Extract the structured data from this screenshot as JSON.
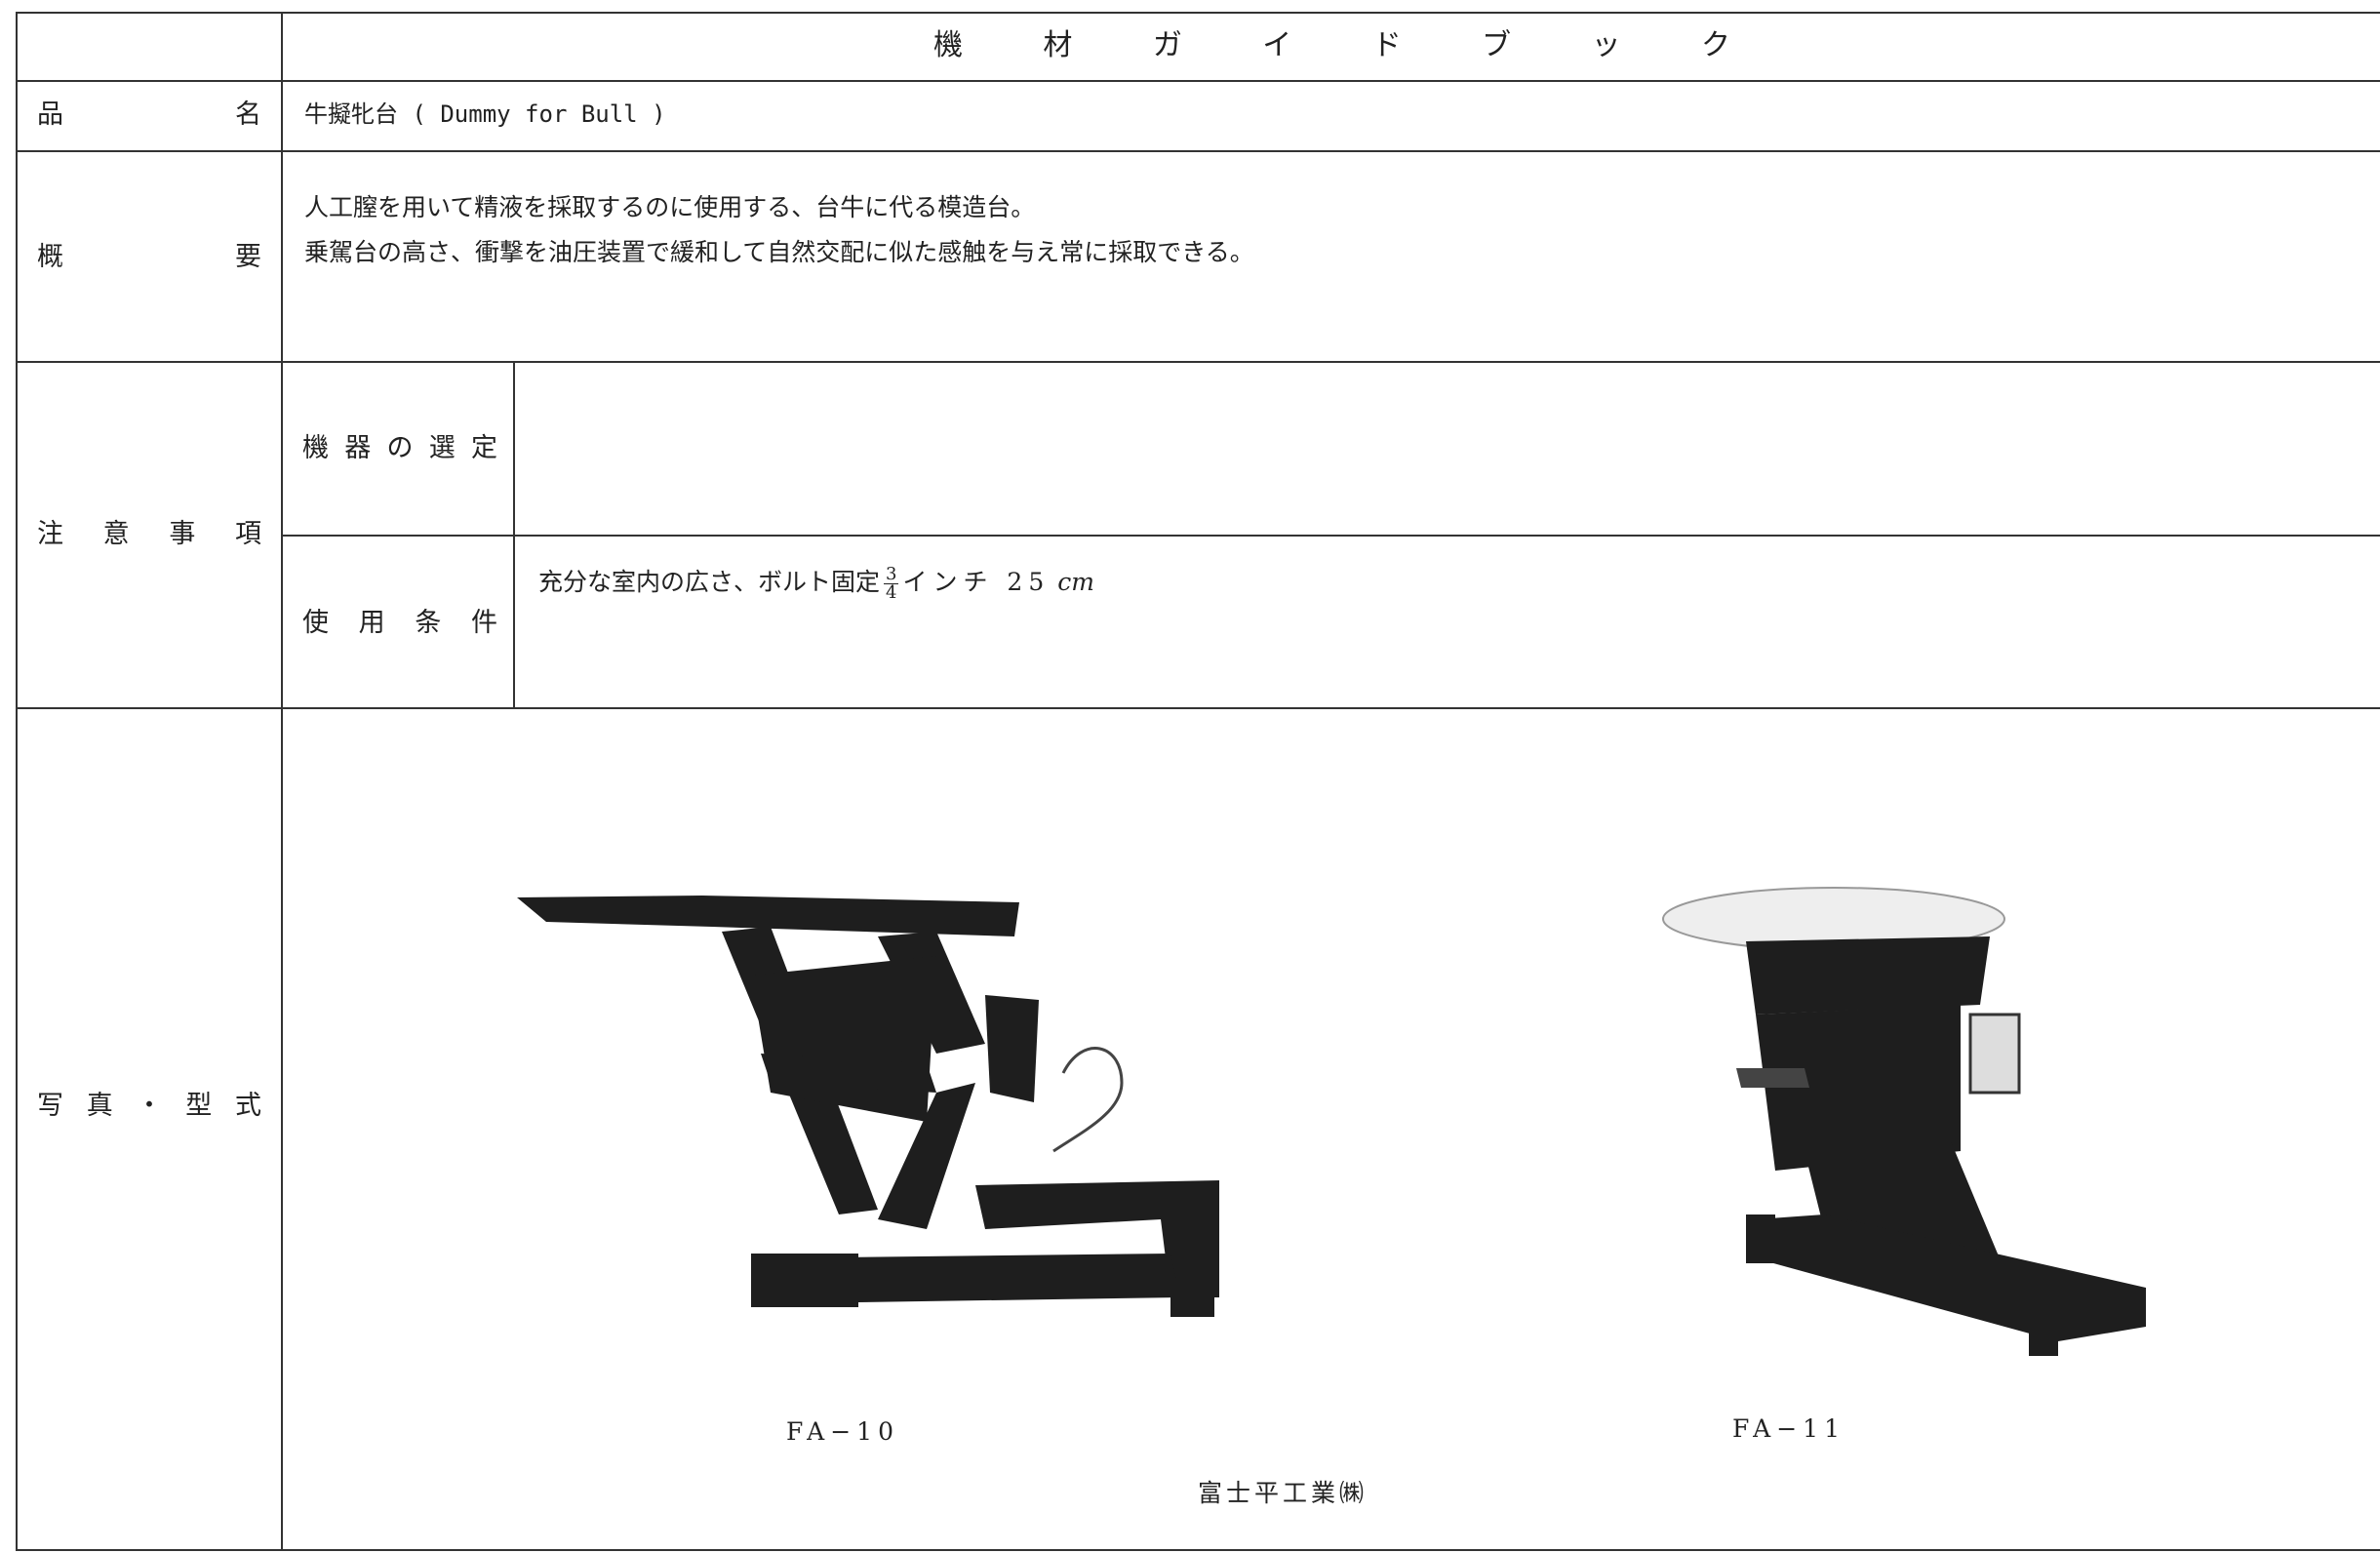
{
  "header": {
    "title": "機材ガイドブック"
  },
  "rows": {
    "name": {
      "label": "品名",
      "value": "牛擬牝台 ( Dummy for Bull )"
    },
    "summary": {
      "label": "概要",
      "lines": [
        "人工膣を用いて精液を採取するのに使用する、台牛に代る模造台。",
        "乗駕台の高さ、衝撃を油圧装置で緩和して自然交配に似た感触を与え常に採取できる。"
      ]
    },
    "notes": {
      "label": "注意事項",
      "selection": {
        "label": "機器の選定"
      },
      "conditions": {
        "label": "使用条件",
        "text": "充分な室内の広さ、ボルト固定",
        "numerator": "3",
        "denominator": "4",
        "unit_text": "インチ 25",
        "unit": "cm"
      }
    },
    "photos": {
      "label": "写真・型式",
      "models": [
        "FA−10",
        "FA−11"
      ],
      "maker": "富士平工業㈱"
    }
  }
}
